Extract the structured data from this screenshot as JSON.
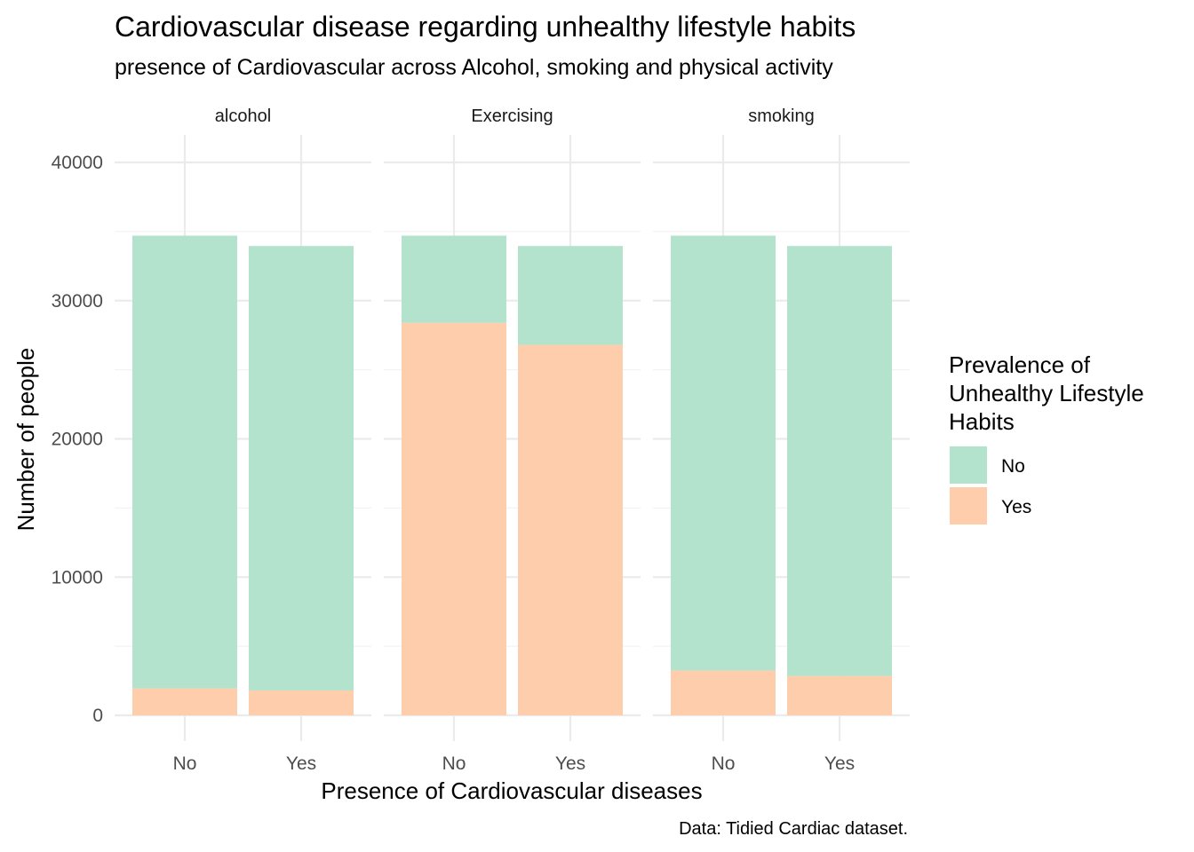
{
  "chart_data": {
    "type": "bar",
    "stacked": true,
    "title": "Cardiovascular disease regarding unhealthy lifestyle habits",
    "subtitle": "presence of Cardiovascular across Alcohol, smoking and physical activity",
    "xlabel": "Presence of Cardiovascular diseases",
    "ylabel": "Number of people",
    "caption": "Data: Tidied Cardiac dataset.",
    "ylim": [
      0,
      42000
    ],
    "yticks": [
      0,
      10000,
      20000,
      30000,
      40000
    ],
    "ytick_labels": [
      "0",
      "10000",
      "20000",
      "30000",
      "40000"
    ],
    "categories": [
      "No",
      "Yes"
    ],
    "legend": {
      "title": [
        "Prevalence of",
        "Unhealthy Lifestyle",
        "Habits"
      ],
      "position": "right",
      "entries": [
        {
          "label": "No",
          "color": "#b3e2cd"
        },
        {
          "label": "Yes",
          "color": "#fdcdac"
        }
      ]
    },
    "grid": true,
    "facets": [
      {
        "name": "alcohol",
        "series": [
          {
            "name": "Yes",
            "values": [
              1950,
              1800
            ]
          },
          {
            "name": "No",
            "values": [
              32750,
              32150
            ]
          }
        ]
      },
      {
        "name": "Exercising",
        "series": [
          {
            "name": "Yes",
            "values": [
              28400,
              26800
            ]
          },
          {
            "name": "No",
            "values": [
              6300,
              7150
            ]
          }
        ]
      },
      {
        "name": "smoking",
        "series": [
          {
            "name": "Yes",
            "values": [
              3250,
              2850
            ]
          },
          {
            "name": "No",
            "values": [
              31450,
              31100
            ]
          }
        ]
      }
    ]
  }
}
